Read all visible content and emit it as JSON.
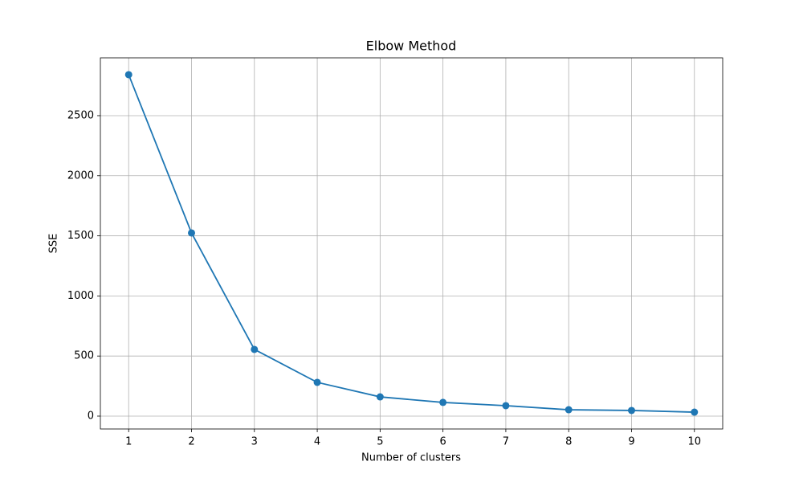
{
  "chart_data": {
    "type": "line",
    "title": "Elbow Method",
    "x_label": "Number of clusters",
    "y_label": "SSE",
    "x": [
      1,
      2,
      3,
      4,
      5,
      6,
      7,
      8,
      9,
      10
    ],
    "series": [
      {
        "name": "SSE",
        "color": "#1f77b4",
        "values": [
          2841,
          1524,
          555,
          281,
          160,
          114,
          87,
          53,
          47,
          33
        ]
      }
    ],
    "xlim": [
      0.55,
      10.45
    ],
    "xticks": [
      1,
      2,
      3,
      4,
      5,
      6,
      7,
      8,
      9,
      10
    ],
    "ylim": [
      -107,
      2981
    ],
    "yticks": [
      0,
      500,
      1000,
      1500,
      2000,
      2500
    ],
    "grid": true,
    "markers": true
  }
}
